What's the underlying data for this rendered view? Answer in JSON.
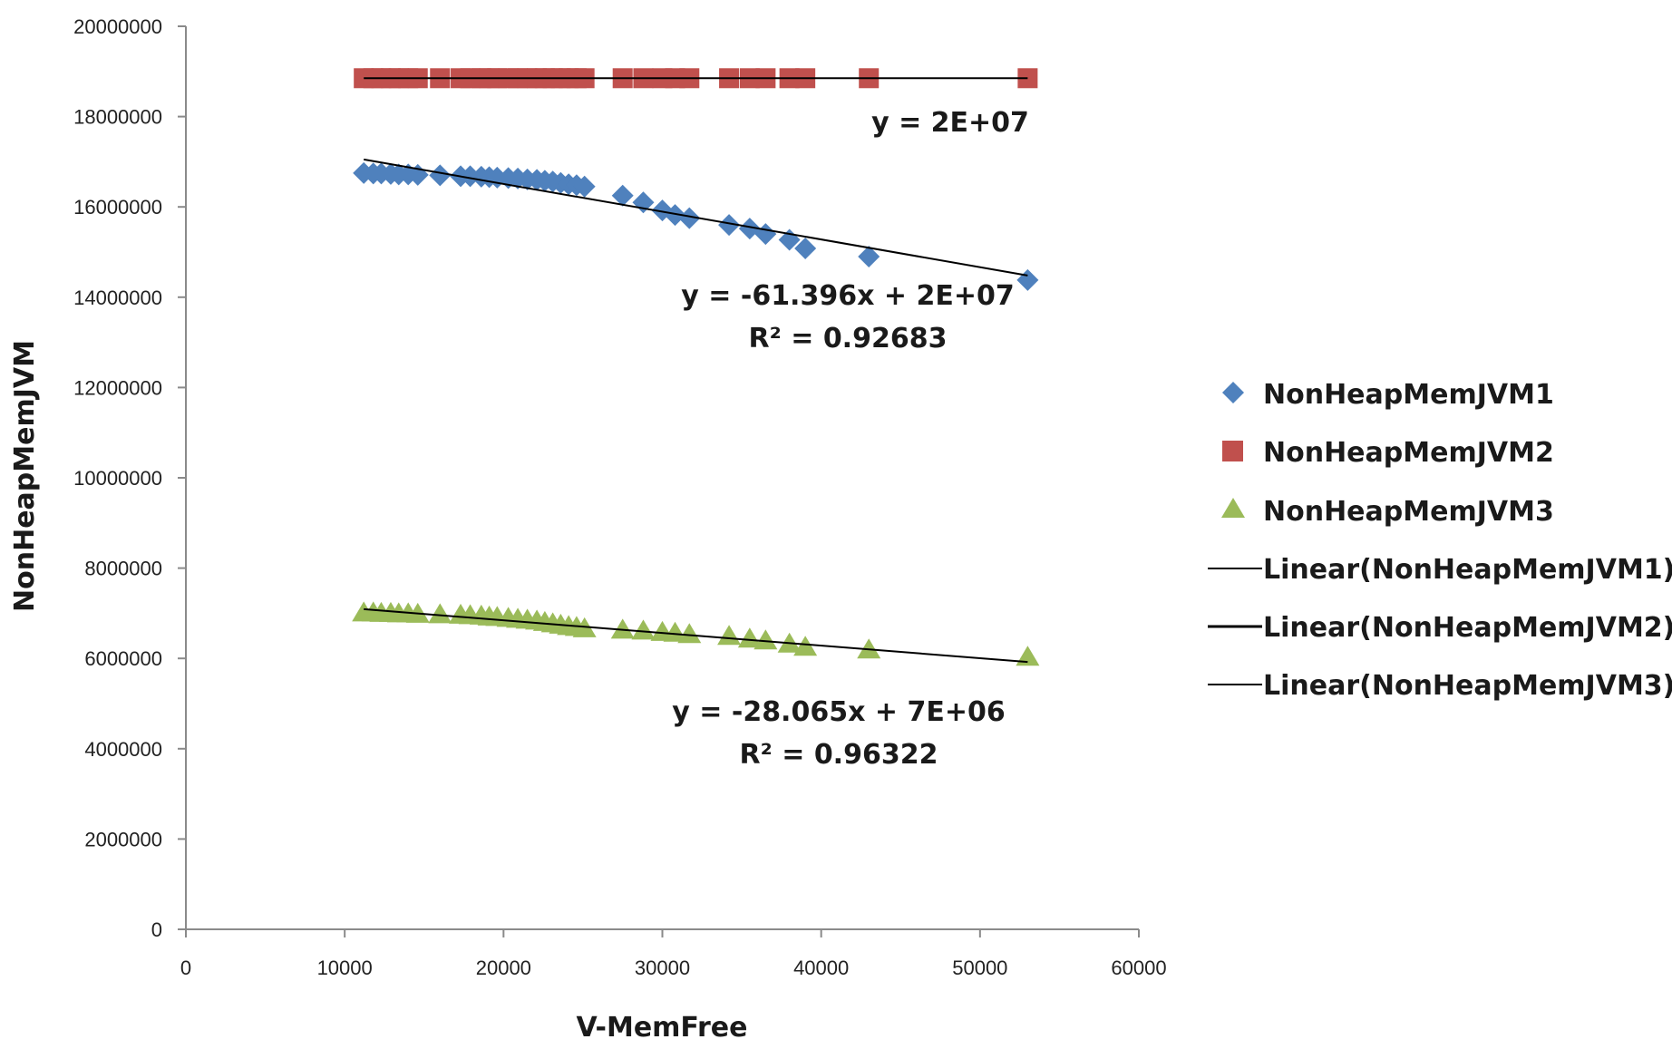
{
  "chart_data": {
    "type": "scatter",
    "xlabel": "V-MemFree",
    "ylabel": "NonHeapMemJVM",
    "xlim": [
      0,
      60000
    ],
    "ylim": [
      0,
      20000000
    ],
    "x_ticks": [
      "0",
      "10000",
      "20000",
      "30000",
      "40000",
      "50000",
      "60000"
    ],
    "y_ticks": [
      "0",
      "2000000",
      "4000000",
      "6000000",
      "8000000",
      "10000000",
      "12000000",
      "14000000",
      "16000000",
      "18000000",
      "20000000"
    ],
    "grid": false,
    "legend_position": "right",
    "x": [
      11200,
      11800,
      12300,
      12900,
      13400,
      14000,
      14600,
      16000,
      17300,
      17900,
      18600,
      19100,
      19600,
      20300,
      20900,
      21500,
      22100,
      22600,
      23100,
      23600,
      24100,
      24600,
      25100,
      27500,
      28800,
      30000,
      30800,
      31700,
      34200,
      35500,
      36500,
      38000,
      39000,
      43000,
      53000
    ],
    "series": [
      {
        "name": "NonHeapMemJVM1",
        "color": "#4F81BD",
        "marker": "diamond",
        "values": [
          16750000,
          16740000,
          16740000,
          16730000,
          16720000,
          16720000,
          16710000,
          16700000,
          16680000,
          16680000,
          16670000,
          16660000,
          16650000,
          16640000,
          16630000,
          16610000,
          16600000,
          16580000,
          16560000,
          16530000,
          16500000,
          16480000,
          16450000,
          16250000,
          16100000,
          15920000,
          15820000,
          15750000,
          15600000,
          15520000,
          15400000,
          15270000,
          15080000,
          14900000,
          14380000
        ]
      },
      {
        "name": "NonHeapMemJVM2",
        "color": "#C0504D",
        "marker": "square",
        "values": [
          18850000,
          18850000,
          18850000,
          18850000,
          18850000,
          18850000,
          18850000,
          18850000,
          18850000,
          18850000,
          18850000,
          18850000,
          18850000,
          18850000,
          18850000,
          18850000,
          18850000,
          18850000,
          18850000,
          18850000,
          18850000,
          18850000,
          18850000,
          18850000,
          18850000,
          18850000,
          18850000,
          18850000,
          18850000,
          18850000,
          18850000,
          18850000,
          18850000,
          18850000,
          18850000
        ]
      },
      {
        "name": "NonHeapMemJVM3",
        "color": "#9BBB59",
        "marker": "triangle",
        "values": [
          7000000,
          7000000,
          6990000,
          6990000,
          6980000,
          6980000,
          6970000,
          6960000,
          6950000,
          6940000,
          6930000,
          6910000,
          6900000,
          6880000,
          6860000,
          6840000,
          6820000,
          6790000,
          6760000,
          6730000,
          6700000,
          6680000,
          6650000,
          6620000,
          6600000,
          6570000,
          6550000,
          6520000,
          6480000,
          6420000,
          6380000,
          6310000,
          6240000,
          6180000,
          6020000
        ]
      }
    ],
    "trendlines": [
      {
        "name": "Linear(NonHeapMemJVM1)",
        "x": [
          11200,
          53000
        ],
        "y": [
          17050000,
          14480000
        ],
        "equation": "y = -61.396x + 2E+07",
        "r2": "R² = 0.92683"
      },
      {
        "name": "Linear(NonHeapMemJVM2)",
        "x": [
          11200,
          53000
        ],
        "y": [
          18850000,
          18850000
        ],
        "equation": "y = 2E+07",
        "r2": ""
      },
      {
        "name": "Linear(NonHeapMemJVM3)",
        "x": [
          11200,
          53000
        ],
        "y": [
          7090000,
          5920000
        ],
        "equation": "y = -28.065x + 7E+06",
        "r2": "R² = 0.96322"
      }
    ]
  }
}
